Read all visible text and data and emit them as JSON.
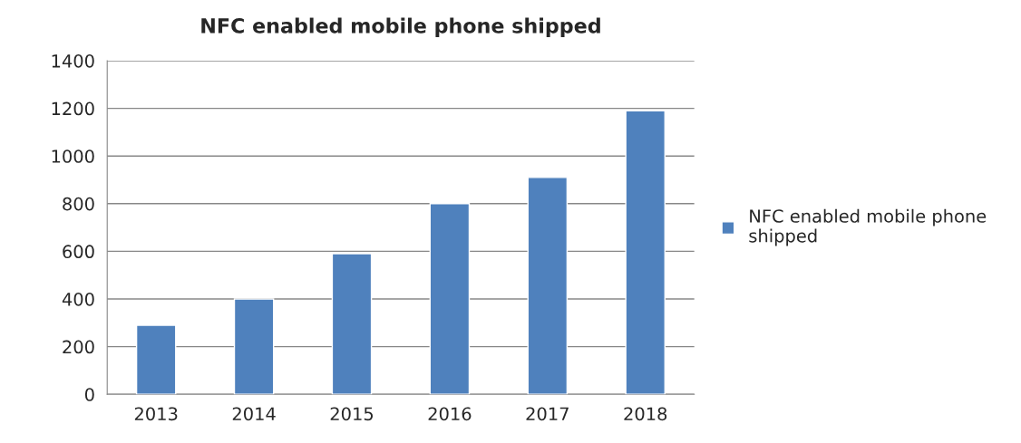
{
  "chart_data": {
    "type": "bar",
    "title": "NFC enabled mobile phone shipped",
    "categories": [
      "2013",
      "2014",
      "2015",
      "2016",
      "2017",
      "2018"
    ],
    "series": [
      {
        "name": "NFC enabled mobile phone shipped",
        "color": "#4f81bd",
        "values": [
          290,
          400,
          590,
          800,
          910,
          1190
        ]
      }
    ],
    "ylim": [
      0,
      1400
    ],
    "yticks": [
      0,
      200,
      400,
      600,
      800,
      1000,
      1200,
      1400
    ],
    "grid": "y",
    "legend": "right"
  }
}
